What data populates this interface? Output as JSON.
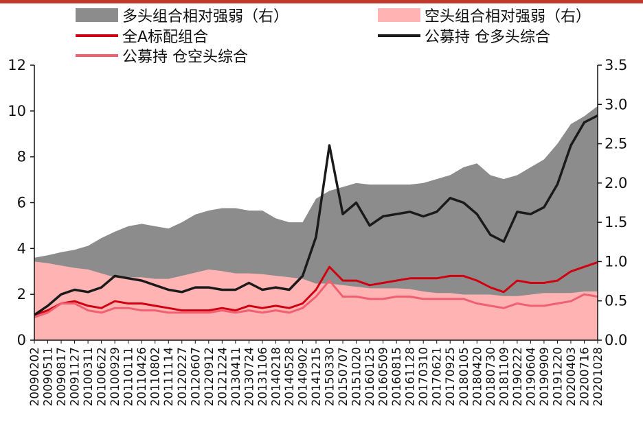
{
  "colors": {
    "top_bar": "#c0392b",
    "long_area": "#8c8c8c",
    "short_area": "#ffb3b3",
    "all_a": "#d00010",
    "fund_long": "#1a1a1a",
    "fund_short": "#f06070"
  },
  "legend": [
    {
      "key": "long_rel",
      "label": "多头组合相对强弱（右）",
      "kind": "area",
      "color": "#8c8c8c"
    },
    {
      "key": "short_rel",
      "label": "空头组合相对强弱（右）",
      "kind": "area",
      "color": "#ffb3b3"
    },
    {
      "key": "all_a",
      "label": "全A标配组合",
      "kind": "line",
      "color": "#d00010"
    },
    {
      "key": "fund_long",
      "label": "公募持 仓多头综合",
      "kind": "line",
      "color": "#1a1a1a"
    },
    {
      "key": "fund_short",
      "label": "公募持 仓空头综合",
      "kind": "line",
      "color": "#f06070"
    }
  ],
  "chart_data": {
    "type": "line",
    "x_tick_labels": [
      "20090202",
      "20090511",
      "20090817",
      "20091127",
      "20100311",
      "20100622",
      "20100929",
      "20110111",
      "20110426",
      "20110802",
      "20111114",
      "20120227",
      "20120607",
      "20120912",
      "20121224",
      "20130411",
      "20130724",
      "20131106",
      "20140218",
      "20140528",
      "20140902",
      "20141215",
      "20150330",
      "20150707",
      "20151020",
      "20160125",
      "20160509",
      "20160815",
      "20161128",
      "20170310",
      "20170621",
      "20170925",
      "20180105",
      "20180420",
      "20180730",
      "20181109",
      "20190222",
      "20190604",
      "20190909",
      "20191220",
      "20200403",
      "20200716",
      "20201028"
    ],
    "ylim_left": [
      0,
      12
    ],
    "yticks_left": [
      0,
      2,
      4,
      6,
      8,
      10,
      12
    ],
    "ylim_right": [
      0.0,
      3.5
    ],
    "yticks_right": [
      "0.0",
      "0.5",
      "1.0",
      "1.5",
      "2.0",
      "2.5",
      "3.0",
      "3.5"
    ],
    "series": [
      {
        "name": "多头组合相对强弱（右）",
        "axis": "right",
        "kind": "area",
        "values": [
          1.05,
          1.08,
          1.12,
          1.15,
          1.2,
          1.3,
          1.38,
          1.45,
          1.48,
          1.45,
          1.42,
          1.5,
          1.6,
          1.65,
          1.68,
          1.68,
          1.65,
          1.65,
          1.55,
          1.5,
          1.5,
          1.8,
          1.9,
          1.95,
          2.0,
          1.98,
          1.98,
          1.98,
          1.98,
          2.0,
          2.05,
          2.1,
          2.2,
          2.25,
          2.1,
          2.05,
          2.1,
          2.2,
          2.3,
          2.5,
          2.75,
          2.85,
          2.98
        ]
      },
      {
        "name": "空头组合相对强弱（右）",
        "axis": "right",
        "kind": "area",
        "values": [
          1.0,
          0.98,
          0.95,
          0.92,
          0.9,
          0.85,
          0.8,
          0.8,
          0.8,
          0.78,
          0.78,
          0.82,
          0.86,
          0.9,
          0.88,
          0.85,
          0.85,
          0.84,
          0.82,
          0.8,
          0.78,
          0.72,
          0.72,
          0.7,
          0.68,
          0.66,
          0.66,
          0.66,
          0.65,
          0.62,
          0.6,
          0.6,
          0.58,
          0.58,
          0.58,
          0.56,
          0.56,
          0.58,
          0.6,
          0.6,
          0.6,
          0.62,
          0.62
        ]
      },
      {
        "name": "全A标配组合",
        "axis": "left",
        "kind": "line",
        "values": [
          1.1,
          1.3,
          1.6,
          1.7,
          1.5,
          1.4,
          1.7,
          1.6,
          1.6,
          1.5,
          1.4,
          1.3,
          1.3,
          1.3,
          1.4,
          1.3,
          1.5,
          1.4,
          1.5,
          1.4,
          1.6,
          2.2,
          3.2,
          2.6,
          2.6,
          2.4,
          2.5,
          2.6,
          2.7,
          2.7,
          2.7,
          2.8,
          2.8,
          2.6,
          2.3,
          2.1,
          2.6,
          2.5,
          2.5,
          2.6,
          3.0,
          3.2,
          3.4
        ]
      },
      {
        "name": "公募持 仓多头综合",
        "axis": "left",
        "kind": "line",
        "values": [
          1.1,
          1.5,
          2.0,
          2.2,
          2.1,
          2.3,
          2.8,
          2.7,
          2.6,
          2.4,
          2.2,
          2.1,
          2.3,
          2.3,
          2.2,
          2.2,
          2.5,
          2.2,
          2.3,
          2.2,
          2.8,
          4.5,
          8.5,
          5.5,
          6.0,
          5.0,
          5.4,
          5.5,
          5.6,
          5.4,
          5.6,
          6.2,
          6.0,
          5.5,
          4.6,
          4.3,
          5.6,
          5.5,
          5.8,
          6.8,
          8.5,
          9.5,
          9.8
        ]
      },
      {
        "name": "公募持 仓空头综合",
        "axis": "left",
        "kind": "line",
        "values": [
          1.0,
          1.2,
          1.6,
          1.6,
          1.3,
          1.2,
          1.4,
          1.4,
          1.3,
          1.3,
          1.2,
          1.2,
          1.2,
          1.2,
          1.3,
          1.2,
          1.3,
          1.2,
          1.3,
          1.2,
          1.4,
          1.9,
          2.6,
          1.9,
          1.9,
          1.8,
          1.8,
          1.9,
          1.9,
          1.8,
          1.8,
          1.8,
          1.8,
          1.6,
          1.5,
          1.4,
          1.6,
          1.5,
          1.5,
          1.6,
          1.7,
          2.0,
          1.9
        ]
      }
    ]
  }
}
